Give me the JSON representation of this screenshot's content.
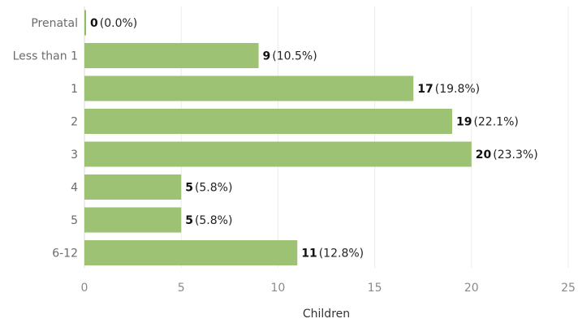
{
  "chart_data": {
    "type": "bar",
    "orientation": "horizontal",
    "title": "",
    "xlabel": "Children",
    "ylabel": "",
    "categories": [
      "Prenatal",
      "Less than 1",
      "1",
      "2",
      "3",
      "4",
      "5",
      "6-12"
    ],
    "values": [
      0,
      9,
      17,
      19,
      20,
      5,
      5,
      11
    ],
    "percent_labels": [
      "(0.0%)",
      "(10.5%)",
      "(19.8%)",
      "(22.1%)",
      "(23.3%)",
      "(5.8%)",
      "(5.8%)",
      "(12.8%)"
    ],
    "xlim": [
      0,
      25
    ],
    "xticks": [
      "0",
      "5",
      "10",
      "15",
      "20",
      "25"
    ],
    "grid": true,
    "bar_color": "#9dc273",
    "zero_bar_color": "#8fbf60"
  }
}
